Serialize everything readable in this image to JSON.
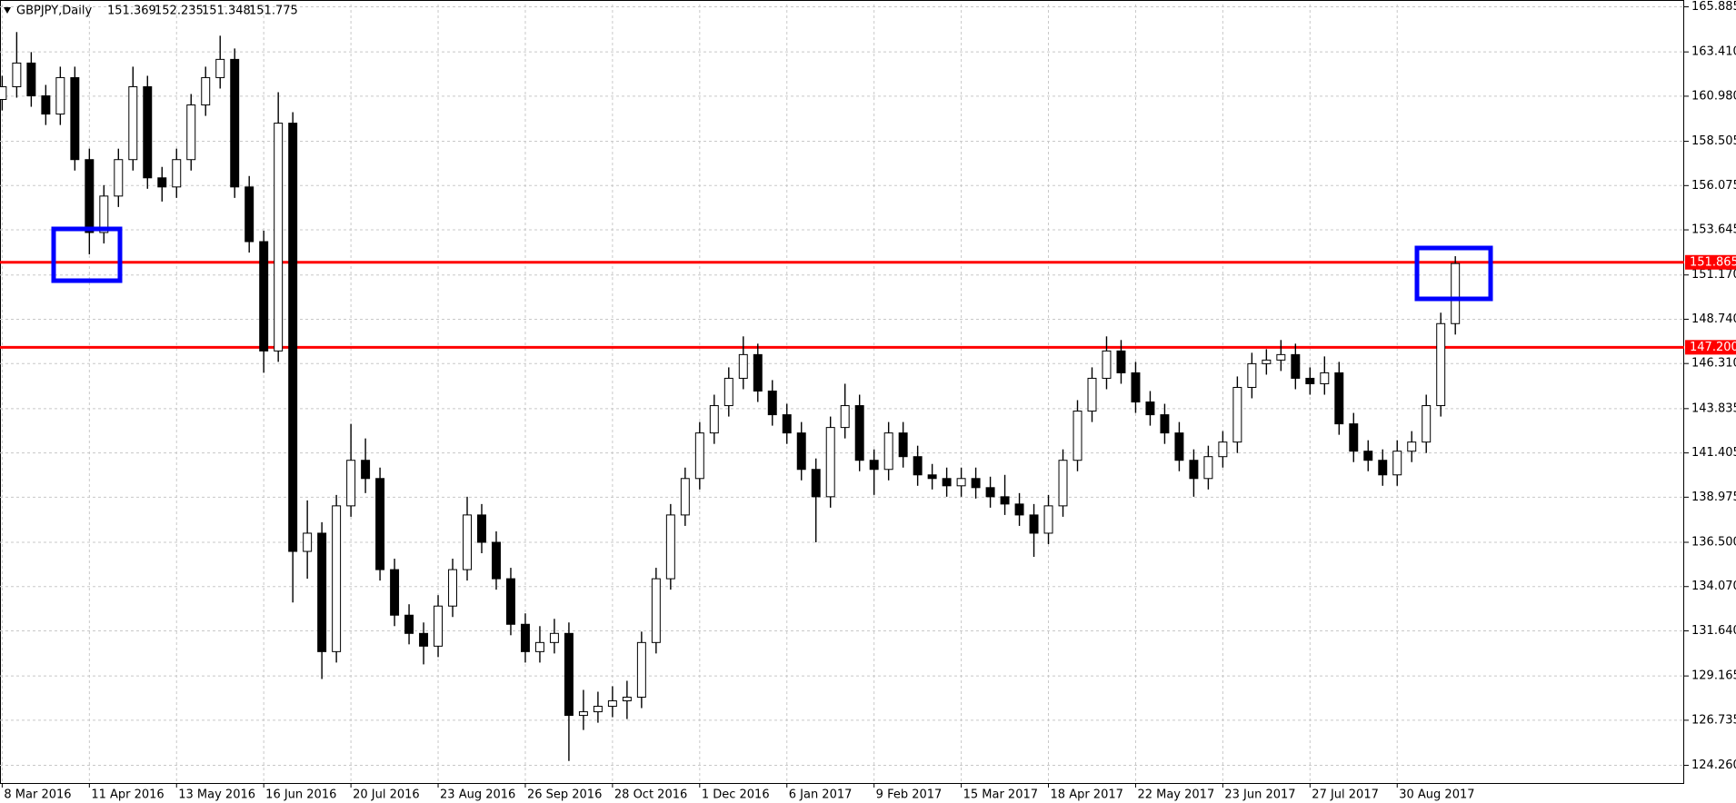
{
  "chart_data": {
    "type": "candlestick",
    "title": "GBPJPY,Daily",
    "header_values": [
      151.369,
      152.235,
      151.348,
      151.775
    ],
    "ylim": [
      123.29,
      166.01
    ],
    "yticks": [
      165.885,
      {
        "value": 163.41,
        "label": "163.410"
      },
      {
        "value": 160.98,
        "label": "160.980"
      },
      158.505,
      156.075,
      153.645,
      {
        "value": 151.17,
        "label": "151.170"
      },
      {
        "value": 148.74,
        "label": "148.740"
      },
      {
        "value": 146.31,
        "label": "146.310"
      },
      143.835,
      141.405,
      138.975,
      {
        "value": 136.5,
        "label": "136.500"
      },
      {
        "value": 134.07,
        "label": "134.070"
      },
      {
        "value": 131.64,
        "label": "131.640"
      },
      129.165,
      126.735,
      {
        "value": 124.26,
        "label": "124.260"
      }
    ],
    "xlim": [
      -0.6,
      463
    ],
    "xticks": [
      {
        "value": 0,
        "label": "8 Mar 2016"
      },
      {
        "value": 24,
        "label": "11 Apr 2016"
      },
      {
        "value": 48,
        "label": "13 May 2016"
      },
      {
        "value": 72,
        "label": "16 Jun 2016"
      },
      {
        "value": 96,
        "label": "20 Jul 2016"
      },
      {
        "value": 120,
        "label": "23 Aug 2016"
      },
      {
        "value": 144,
        "label": "26 Sep 2016"
      },
      {
        "value": 168,
        "label": "28 Oct 2016"
      },
      {
        "value": 192,
        "label": "1 Dec 2016"
      },
      {
        "value": 216,
        "label": "6 Jan 2017"
      },
      {
        "value": 240,
        "label": "9 Feb 2017"
      },
      {
        "value": 264,
        "label": "15 Mar 2017"
      },
      {
        "value": 288,
        "label": "18 Apr 2017"
      },
      {
        "value": 312,
        "label": "22 May 2017"
      },
      {
        "value": 336,
        "label": "23 Jun 2017"
      },
      {
        "value": 360,
        "label": "27 Jul 2017"
      },
      {
        "value": 384,
        "label": "30 Aug 2017"
      }
    ],
    "grid": true,
    "up_color": "#ffffff",
    "down_color": "#000000",
    "level_color": "#ff0000",
    "levels": [
      151.865,
      {
        "value": 147.2,
        "label": "147.200"
      }
    ],
    "x": [
      0,
      4,
      8,
      12,
      16,
      20,
      24,
      28,
      32,
      36,
      40,
      44,
      48,
      52,
      56,
      60,
      64,
      68,
      72,
      76,
      80,
      84,
      88,
      92,
      96,
      100,
      104,
      108,
      112,
      116,
      120,
      124,
      128,
      132,
      136,
      140,
      144,
      148,
      152,
      156,
      160,
      164,
      168,
      172,
      176,
      180,
      184,
      188,
      192,
      196,
      200,
      204,
      208,
      212,
      216,
      220,
      224,
      228,
      232,
      236,
      240,
      244,
      248,
      252,
      256,
      260,
      264,
      268,
      272,
      276,
      280,
      284,
      288,
      292,
      296,
      300,
      304,
      308,
      312,
      316,
      320,
      324,
      328,
      332,
      336,
      340,
      344,
      348,
      352,
      356,
      360,
      364,
      368,
      372,
      376,
      380,
      384,
      388,
      392,
      396,
      400
    ],
    "open": [
      160.8,
      161.5,
      162.8,
      161,
      160,
      162,
      157.5,
      153.5,
      155.5,
      157.5,
      161.5,
      156.5,
      156,
      157.5,
      160.5,
      162,
      163,
      156,
      153,
      147,
      159.5,
      136,
      137,
      130.5,
      138.5,
      141,
      140,
      135,
      132.5,
      131.5,
      130.8,
      133,
      135,
      138,
      136.5,
      134.5,
      132,
      130.5,
      131,
      131.5,
      127,
      127.2,
      127.5,
      127.8,
      128,
      131,
      134.5,
      138,
      140,
      142.5,
      144,
      145.5,
      146.8,
      144.8,
      143.5,
      142.5,
      140.5,
      139,
      142.8,
      144,
      141,
      140.5,
      142.5,
      141.2,
      140.2,
      140,
      139.6,
      140,
      139.5,
      139,
      138.6,
      138,
      137,
      138.5,
      141,
      143.7,
      145.5,
      147,
      145.8,
      144.2,
      143.5,
      142.5,
      141,
      140,
      141.2,
      142,
      145,
      146.3,
      146.5,
      146.8,
      145.5,
      145.2,
      145.8,
      143,
      141.5,
      141,
      140.2,
      141.5,
      142,
      144,
      148.5
    ],
    "high": [
      162.1,
      164.5,
      163.4,
      161.6,
      162.6,
      162.6,
      158.1,
      156.1,
      158.1,
      162.6,
      162.1,
      157.1,
      158.1,
      161.1,
      162.6,
      164.3,
      163.6,
      156.6,
      153.6,
      161.2,
      160.1,
      138.8,
      137.6,
      139.1,
      143,
      142.2,
      140.6,
      135.6,
      133.1,
      132.1,
      133.6,
      135.6,
      139,
      138.6,
      137.1,
      135.1,
      132.6,
      131.9,
      132.3,
      132.1,
      128.4,
      128.3,
      128.6,
      128.9,
      131.6,
      135.1,
      138.6,
      140.6,
      143.1,
      144.6,
      146.1,
      147.8,
      147.4,
      145.4,
      144.1,
      143.1,
      141.1,
      143.4,
      145.2,
      144.6,
      141.6,
      143.1,
      143.1,
      141.8,
      140.8,
      140.6,
      140.6,
      140.6,
      140.1,
      140.2,
      139.2,
      138.6,
      139.1,
      141.6,
      144.3,
      146.1,
      147.8,
      147.6,
      146.4,
      144.8,
      144.1,
      143.1,
      141.6,
      141.8,
      142.6,
      145.6,
      146.9,
      147.1,
      147.6,
      147.4,
      146.1,
      146.7,
      146.4,
      143.6,
      142.1,
      141.6,
      142.1,
      142.6,
      144.6,
      149.1,
      152.2
    ],
    "low": [
      160.2,
      160.9,
      160.4,
      159.4,
      159.4,
      156.9,
      152.3,
      152.9,
      154.9,
      156.9,
      155.9,
      155.2,
      155.4,
      156.9,
      159.9,
      161.4,
      155.4,
      152.4,
      145.8,
      146.4,
      133.2,
      134.5,
      129,
      129.9,
      137.9,
      139.2,
      134.4,
      131.9,
      130.9,
      129.8,
      130.2,
      132.4,
      134.4,
      135.9,
      133.9,
      131.4,
      129.9,
      129.9,
      130.4,
      124.5,
      126.2,
      126.6,
      126.9,
      126.8,
      127.4,
      130.4,
      133.9,
      137.4,
      139.4,
      141.9,
      143.4,
      144.9,
      144.2,
      142.9,
      141.9,
      139.9,
      136.5,
      138.4,
      142.2,
      140.4,
      139.1,
      139.9,
      140.6,
      139.6,
      139.4,
      139,
      139,
      138.9,
      138.4,
      138,
      137.4,
      135.7,
      136.4,
      137.9,
      140.4,
      143.1,
      144.9,
      145.2,
      143.6,
      142.9,
      141.9,
      140.4,
      139,
      139.4,
      140.6,
      141.4,
      144.4,
      145.7,
      145.9,
      144.9,
      144.6,
      144.6,
      142.4,
      140.9,
      140.4,
      139.6,
      139.6,
      140.9,
      141.4,
      143.4,
      147.9
    ],
    "close": [
      161.5,
      162.8,
      161,
      160,
      162,
      157.5,
      153.5,
      155.5,
      157.5,
      161.5,
      156.5,
      156,
      157.5,
      160.5,
      162,
      163,
      156,
      153,
      147,
      159.5,
      136,
      137,
      130.5,
      138.5,
      141,
      140,
      135,
      132.5,
      131.5,
      130.8,
      133,
      135,
      138,
      136.5,
      134.5,
      132,
      130.5,
      131,
      131.5,
      127,
      127.2,
      127.5,
      127.8,
      128,
      131,
      134.5,
      138,
      140,
      142.5,
      144,
      145.5,
      146.8,
      144.8,
      143.5,
      142.5,
      140.5,
      139,
      142.8,
      144,
      141,
      140.5,
      142.5,
      141.2,
      140.2,
      140,
      139.6,
      140,
      139.5,
      139,
      138.6,
      138,
      137,
      138.5,
      141,
      143.7,
      145.5,
      147,
      145.8,
      144.2,
      143.5,
      142.5,
      141,
      140,
      141.2,
      142,
      145,
      146.3,
      146.5,
      146.8,
      145.5,
      145.2,
      145.8,
      143,
      141.5,
      141,
      140.2,
      141.5,
      142,
      144,
      148.5,
      151.8
    ]
  }
}
